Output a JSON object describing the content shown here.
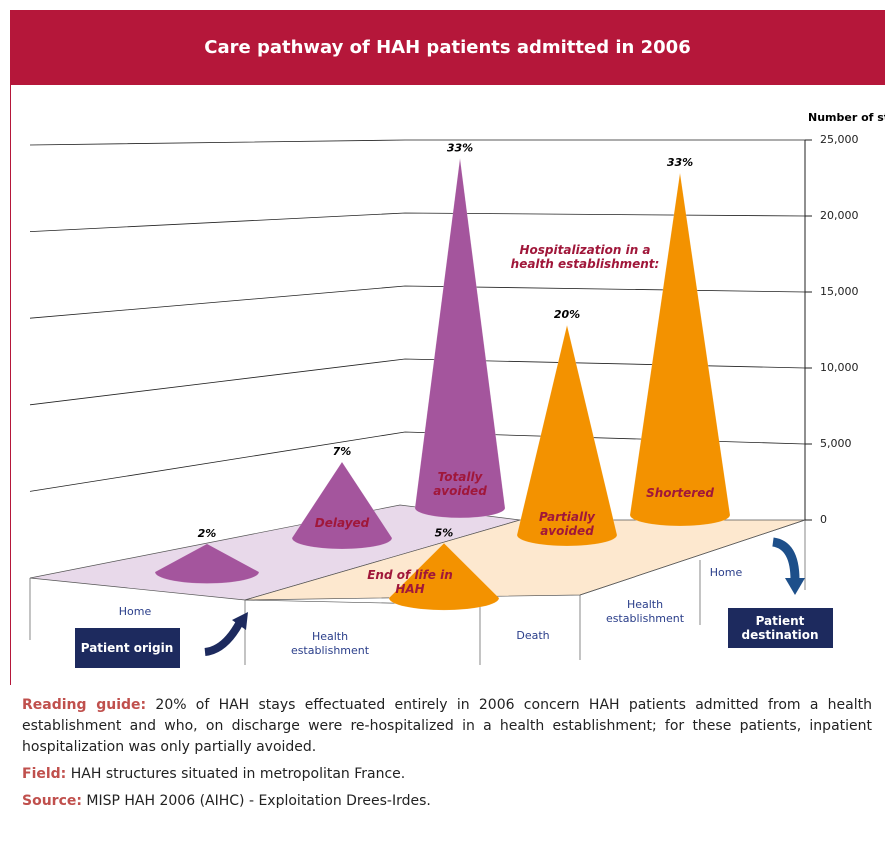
{
  "chart_data": {
    "type": "cone3d",
    "title": "Care pathway of HAH patients admitted in 2006",
    "y_axis_label": "Number of stays",
    "ylim": [
      0,
      25000
    ],
    "yticks": [
      0,
      {
        "value": 5000,
        "label": "5,000"
      },
      {
        "value": 10000,
        "label": "10,000"
      },
      {
        "value": 15000,
        "label": "15,000"
      },
      {
        "value": 20000,
        "label": "20,000"
      },
      {
        "value": 25000,
        "label": "25,000"
      }
    ],
    "origin_axis": {
      "label": "Patient origin",
      "categories": [
        "Home",
        "Health establishment"
      ]
    },
    "destination_axis": {
      "label": "Patient destination",
      "categories": [
        "Death",
        "Health establishment",
        "Home"
      ]
    },
    "annotation": "Hospitalization in a health establishment:",
    "series": [
      {
        "color": "#a4559d",
        "values": [
          1850,
          5000,
          23000
        ],
        "value_labels": [
          "2%",
          "7%",
          "33%"
        ],
        "labels": [
          null,
          "Delayed",
          "Totally avoided"
        ]
      },
      {
        "color": "#f39200",
        "values": [
          3600,
          13800,
          22500
        ],
        "value_labels": [
          "5%",
          "20%",
          "33%"
        ],
        "labels": [
          "End of life in HAH",
          "Partially avoided",
          "Shortered"
        ]
      }
    ]
  },
  "notes": [
    {
      "label": "Reading guide:",
      "text": " 20% of HAH stays effectuated entirely in 2006 concern HAH patients admitted from a health establishment and who, on discharge were re-hospitalized in a health establishment; for these patients, inpatient hospitalization was only partially avoided."
    },
    {
      "label": "Field:",
      "text": " HAH structures situated in metropolitan France."
    },
    {
      "label": "Source:",
      "text": " MISP HAH 2006 (AIHC) - Exploitation Drees-Irdes."
    }
  ]
}
